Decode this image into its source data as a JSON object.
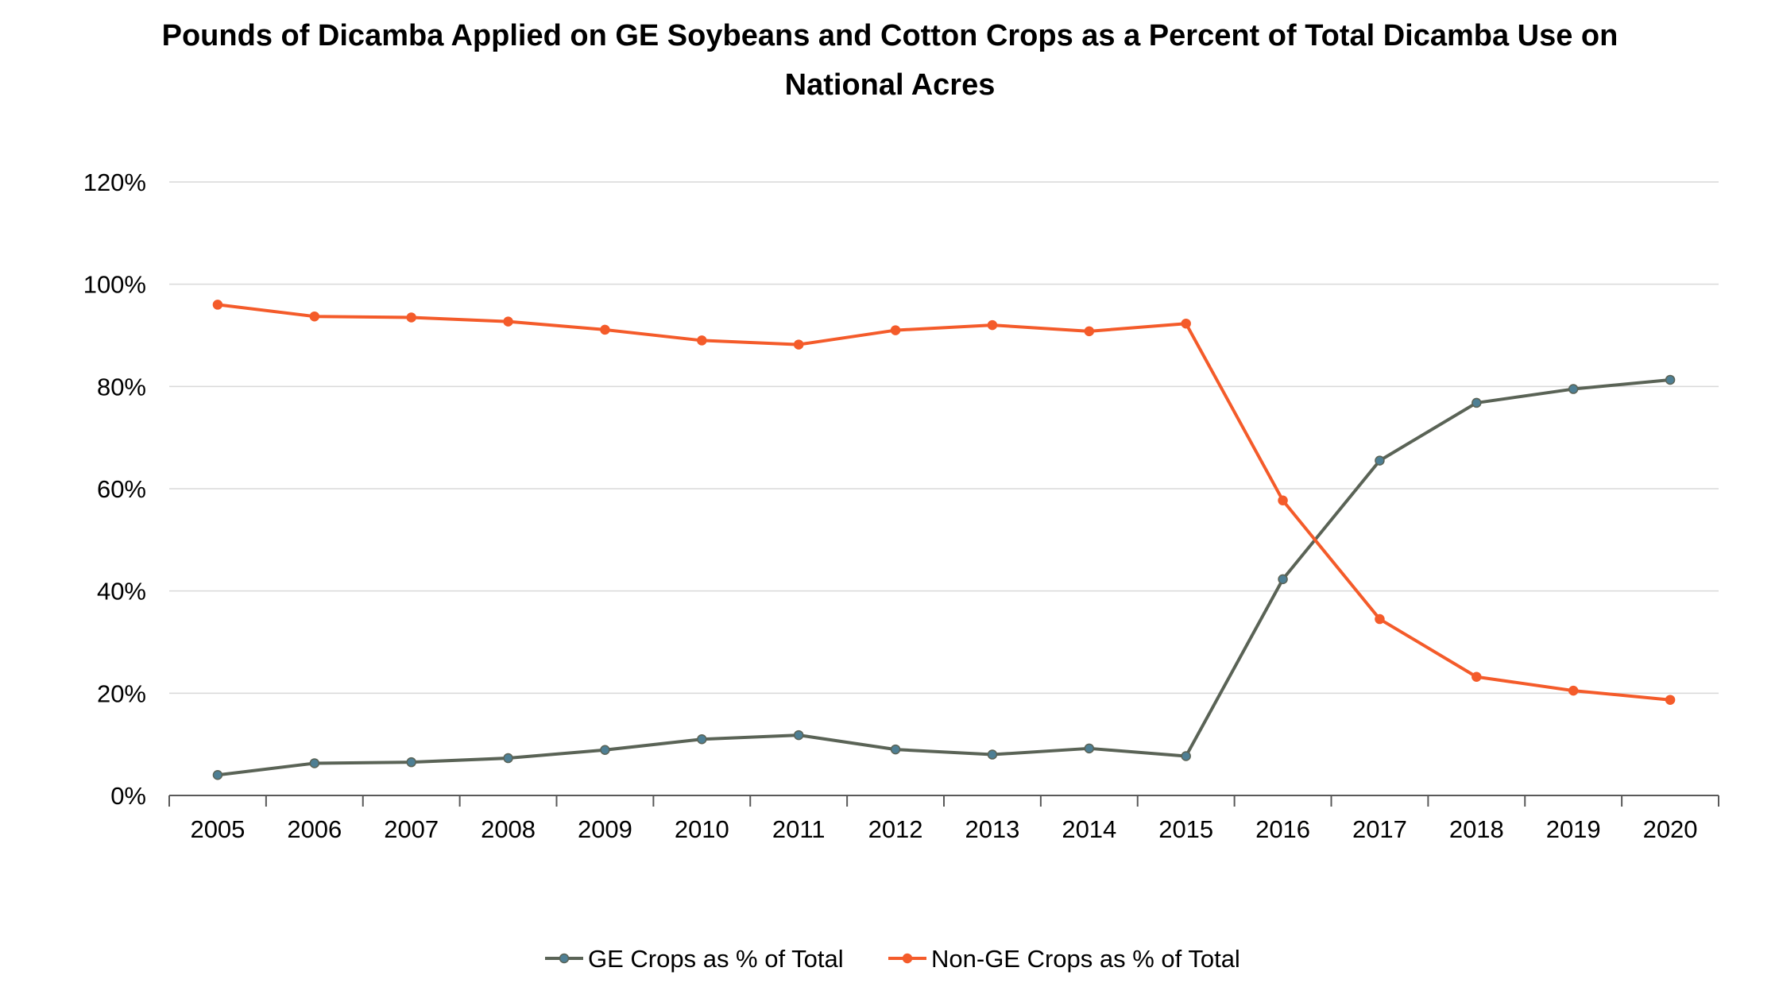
{
  "chart_data": {
    "type": "line",
    "title": "Pounds of Dicamba Applied on GE Soybeans and Cotton Crops as a Percent of Total Dicamba Use on National Acres",
    "xlabel": "",
    "ylabel": "",
    "categories": [
      "2005",
      "2006",
      "2007",
      "2008",
      "2009",
      "2010",
      "2011",
      "2012",
      "2013",
      "2014",
      "2015",
      "2016",
      "2017",
      "2018",
      "2019",
      "2020"
    ],
    "series": [
      {
        "name": "GE Crops as % of Total",
        "color": "#5a6356",
        "marker_color": "#4e7f94",
        "values": [
          4.0,
          6.3,
          6.5,
          7.3,
          8.9,
          11.0,
          11.8,
          9.0,
          8.0,
          9.2,
          7.7,
          42.3,
          65.5,
          76.8,
          79.5,
          81.3
        ]
      },
      {
        "name": "Non-GE Crops as % of Total",
        "color": "#f45b2a",
        "marker_color": "#f45b2a",
        "values": [
          96.0,
          93.7,
          93.5,
          92.7,
          91.1,
          89.0,
          88.2,
          91.0,
          92.0,
          90.8,
          92.3,
          57.7,
          34.5,
          23.2,
          20.5,
          18.7
        ]
      }
    ],
    "ylim": [
      0,
      120
    ],
    "yticks": [
      "0%",
      "20%",
      "40%",
      "60%",
      "80%",
      "100%",
      "120%"
    ],
    "grid": true,
    "legend_position": "bottom"
  }
}
